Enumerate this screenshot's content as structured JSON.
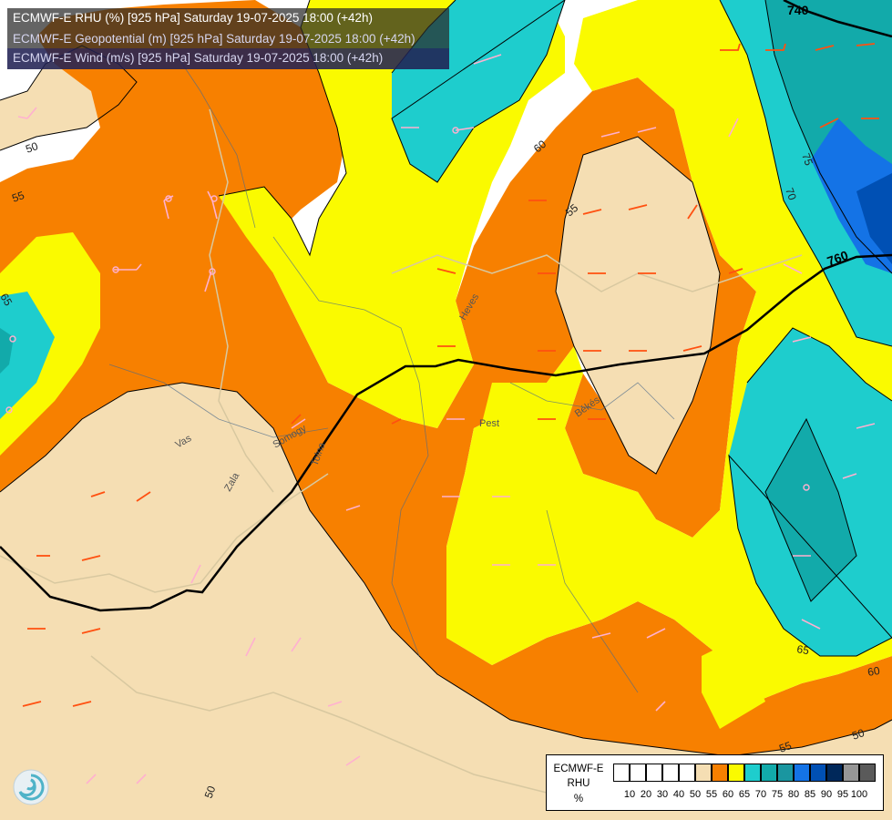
{
  "title": {
    "line1": "ECMWF-E RHU (%) [925 hPa] Saturday 19-07-2025 18:00 (+42h)",
    "line2": "ECMWF-E Geopotential (m) [925 hPa] Saturday 19-07-2025 18:00 (+42h)",
    "line3": "ECMWF-E Wind (m/s) [925 hPa] Saturday 19-07-2025 18:00 (+42h)"
  },
  "legend": {
    "line1": "ECMWF-E",
    "line2": "RHU",
    "line3": "%",
    "ticks": [
      "10",
      "20",
      "30",
      "40",
      "50",
      "55",
      "60",
      "65",
      "70",
      "75",
      "80",
      "85",
      "90",
      "95",
      "100"
    ],
    "colors": [
      "#ffffff",
      "#ffffff",
      "#ffffff",
      "#ffffff",
      "#ffffff",
      "#f5deb3",
      "#f78000",
      "#fafa00",
      "#1ecdcd",
      "#12aaaa",
      "#1a96a0",
      "#1473e6",
      "#0050b4",
      "#00285a",
      "#969696",
      "#5a5a5a"
    ]
  },
  "contour_labels": {
    "rhu": [
      "50",
      "55",
      "60",
      "65",
      "50",
      "55",
      "60",
      "65",
      "70",
      "75",
      "55",
      "50"
    ],
    "geopotential": [
      "740",
      "760"
    ]
  },
  "place_labels": [
    "Heves",
    "Pest",
    "Békés",
    "Vas",
    "Zala",
    "Somogy",
    "Tolna"
  ],
  "colors": {
    "rhu_50_55": "#f5deb3",
    "rhu_55_60": "#f78000",
    "rhu_60_65": "#fafa00",
    "rhu_65_70": "#1ecdcd",
    "rhu_70_75": "#12aaaa",
    "rhu_75_80": "#1a96a0",
    "rhu_80_85": "#1473e6",
    "rhu_85_90": "#0050b4",
    "wind_barb_low": "#ffb0d0",
    "wind_barb_high": "#ff5010",
    "geopotential_line": "#000000"
  }
}
